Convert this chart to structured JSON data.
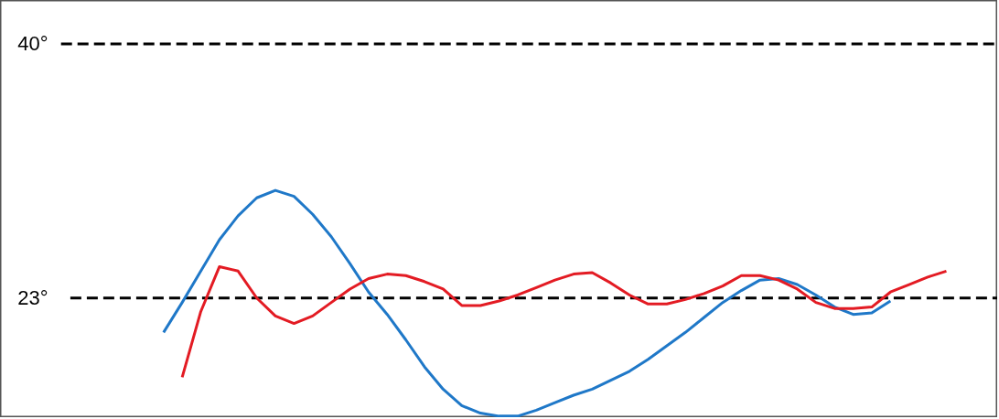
{
  "chart_data": {
    "type": "line",
    "categories": [
      null,
      null,
      null,
      null,
      null,
      null,
      null,
      null,
      null,
      null,
      null,
      null,
      null,
      null,
      null,
      null,
      null,
      null,
      null,
      null,
      null,
      null,
      null,
      null,
      null,
      null,
      null,
      null,
      null,
      null,
      null,
      null,
      null,
      null,
      null,
      null,
      null,
      null,
      null,
      null,
      null,
      null,
      null
    ],
    "ylim": [
      15,
      42.9
    ],
    "grid": false,
    "tick_labels": false,
    "line_style": "solid",
    "marker": "none",
    "series": [
      {
        "color": "#1f78c8",
        "values": [
          20.7,
          22.7,
          24.8,
          26.9,
          28.5,
          29.7,
          30.2,
          29.8,
          28.6,
          27.1,
          25.3,
          23.4,
          21.9,
          20.2,
          18.4,
          16.9,
          15.8,
          15.3,
          15.1,
          15.1,
          15.5,
          16.0,
          16.5,
          16.9,
          17.5,
          18.1,
          18.9,
          19.8,
          20.7,
          21.7,
          22.7,
          23.5,
          24.2,
          24.3,
          23.9,
          23.2,
          22.4,
          21.9,
          22.0,
          22.8,
          null,
          null,
          null
        ]
      },
      {
        "color": "#e31b23",
        "values": [
          null,
          17.7,
          22.1,
          25.1,
          24.8,
          23.0,
          21.8,
          21.3,
          21.8,
          22.7,
          23.6,
          24.3,
          24.6,
          24.5,
          24.1,
          23.6,
          22.5,
          22.5,
          22.8,
          23.2,
          23.7,
          24.2,
          24.6,
          24.7,
          24.0,
          23.2,
          22.6,
          22.6,
          22.9,
          23.3,
          23.8,
          24.5,
          24.5,
          24.2,
          23.6,
          22.7,
          22.3,
          22.3,
          22.4,
          23.4,
          23.9,
          24.4,
          24.8
        ]
      }
    ],
    "ref_lines": [
      {
        "axis": "y",
        "value": 40,
        "label": "40°",
        "color": "#000000",
        "line_style": "dashed"
      },
      {
        "axis": "y",
        "value": 23,
        "label": "23°",
        "color": "#000000",
        "line_style": "dashed"
      }
    ]
  }
}
